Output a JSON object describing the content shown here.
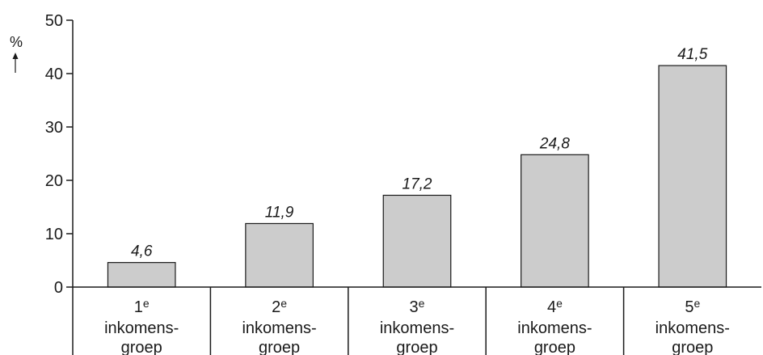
{
  "chart_data": {
    "type": "bar",
    "title": "",
    "ylabel": "%",
    "ylim": [
      0,
      50
    ],
    "yticks": [
      0,
      10,
      20,
      30,
      40,
      50
    ],
    "categories": [
      {
        "ordinal": "1",
        "suffix": "e",
        "line2": "inkomens-",
        "line3": "groep"
      },
      {
        "ordinal": "2",
        "suffix": "e",
        "line2": "inkomens-",
        "line3": "groep"
      },
      {
        "ordinal": "3",
        "suffix": "e",
        "line2": "inkomens-",
        "line3": "groep"
      },
      {
        "ordinal": "4",
        "suffix": "e",
        "line2": "inkomens-",
        "line3": "groep"
      },
      {
        "ordinal": "5",
        "suffix": "e",
        "line2": "inkomens-",
        "line3": "groep"
      }
    ],
    "values": [
      4.6,
      11.9,
      17.2,
      24.8,
      41.5
    ],
    "value_labels": [
      "4,6",
      "11,9",
      "17,2",
      "24,8",
      "41,5"
    ],
    "colors": {
      "bar_fill": "#cccccc",
      "stroke": "#1a1a1a"
    },
    "grid": false,
    "legend": "none"
  }
}
